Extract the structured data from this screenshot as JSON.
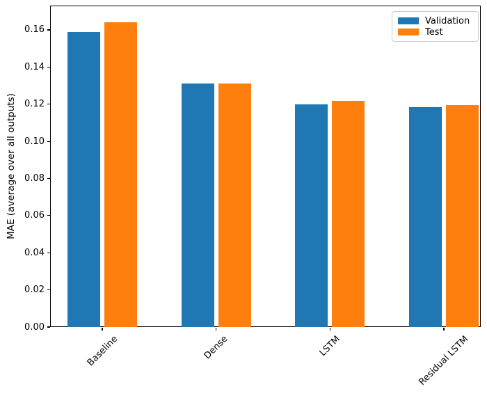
{
  "chart_data": {
    "type": "bar",
    "title": "",
    "categories": [
      "Baseline",
      "Dense",
      "LSTM",
      "Residual LSTM"
    ],
    "series": [
      {
        "name": "Validation",
        "color": "#1f77b4",
        "values": [
          0.159,
          0.131,
          0.12,
          0.1183
        ]
      },
      {
        "name": "Test",
        "color": "#ff7f0e",
        "values": [
          0.164,
          0.131,
          0.1217,
          0.1194
        ]
      }
    ],
    "xlabel": "",
    "ylabel": "MAE (average over all outputs)",
    "ylim": [
      0,
      0.1731
    ],
    "yticks": [
      0.0,
      0.02,
      0.04,
      0.06,
      0.08,
      0.1,
      0.12,
      0.14,
      0.16
    ],
    "ytick_decimals": 2,
    "xtick_rotation": 45,
    "grid": false,
    "legend_position": "upper right"
  }
}
